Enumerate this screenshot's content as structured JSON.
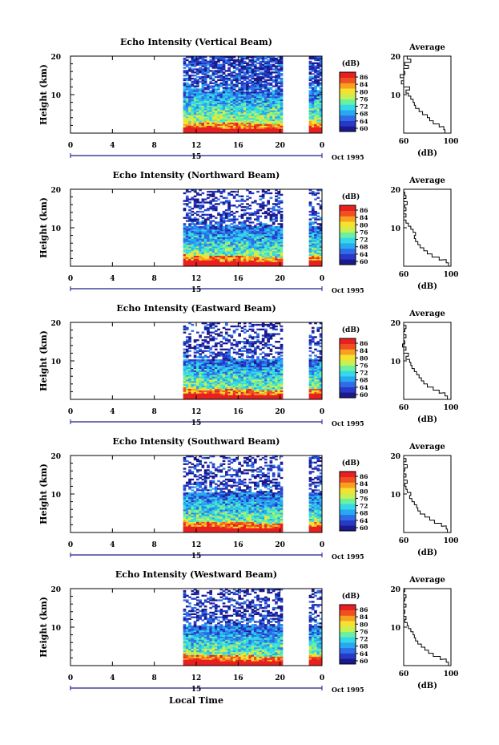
{
  "chart_data": [
    {
      "type": "heatmap",
      "title": "Echo Intensity (Vertical Beam)",
      "ylabel": "Height (km)",
      "x_ticks": [
        "0",
        "4",
        "8",
        "12",
        "16",
        "20",
        "0"
      ],
      "y_ticks": [
        "20",
        "10"
      ],
      "ylim": [
        0,
        20
      ],
      "date_label": "15",
      "date_suffix": "Oct 1995",
      "data_gaps_hours": [
        [
          0,
          10.8
        ],
        [
          20.2,
          22.8
        ]
      ],
      "colorbar": {
        "unit": "(dB)",
        "ticks": [
          "86",
          "84",
          "80",
          "76",
          "72",
          "68",
          "64",
          "60"
        ]
      },
      "profile": {
        "title": "Average",
        "xlabel": "(dB)",
        "x_ticks": [
          "60",
          "100"
        ],
        "y_ticks": [
          "20",
          "10"
        ],
        "points": [
          [
            95,
            0.5
          ],
          [
            94,
            1.3
          ],
          [
            90,
            2
          ],
          [
            85,
            2.8
          ],
          [
            82,
            3.6
          ],
          [
            80,
            4.4
          ],
          [
            76,
            5.2
          ],
          [
            73,
            6
          ],
          [
            70,
            6.8
          ],
          [
            69,
            7.6
          ],
          [
            68,
            8.4
          ],
          [
            66,
            9.2
          ],
          [
            64,
            10
          ],
          [
            62,
            10.8
          ],
          [
            65,
            11.6
          ],
          [
            60,
            12.4
          ],
          [
            58,
            13.2
          ],
          [
            60,
            14
          ],
          [
            57,
            14.8
          ],
          [
            61,
            15.6
          ],
          [
            60,
            16.4
          ],
          [
            64,
            17.2
          ],
          [
            61,
            18
          ],
          [
            66,
            18.8
          ],
          [
            63,
            19.6
          ]
        ]
      }
    },
    {
      "type": "heatmap",
      "title": "Echo Intensity (Northward Beam)",
      "ylabel": "Height (km)",
      "x_ticks": [
        "0",
        "4",
        "8",
        "12",
        "16",
        "20",
        "0"
      ],
      "y_ticks": [
        "20",
        "10"
      ],
      "ylim": [
        0,
        20
      ],
      "date_label": "15",
      "date_suffix": "Oct 1995",
      "data_gaps_hours": [
        [
          0,
          10.8
        ],
        [
          20.2,
          22.8
        ]
      ],
      "colorbar": {
        "unit": "(dB)",
        "ticks": [
          "86",
          "84",
          "80",
          "76",
          "72",
          "68",
          "64",
          "60"
        ]
      },
      "profile": {
        "title": "Average",
        "xlabel": "(dB)",
        "x_ticks": [
          "60",
          "100"
        ],
        "y_ticks": [
          "20",
          "10"
        ],
        "points": [
          [
            98,
            0.5
          ],
          [
            96,
            1.3
          ],
          [
            90,
            2
          ],
          [
            84,
            2.8
          ],
          [
            80,
            3.6
          ],
          [
            77,
            4.4
          ],
          [
            74,
            5.2
          ],
          [
            72,
            6
          ],
          [
            70,
            6.8
          ],
          [
            69,
            7.6
          ],
          [
            70,
            8.4
          ],
          [
            68,
            9.2
          ],
          [
            66,
            10
          ],
          [
            64,
            10.8
          ],
          [
            62,
            11.6
          ],
          [
            60,
            12.4
          ],
          [
            62,
            13.2
          ],
          [
            60,
            14
          ],
          [
            62,
            14.8
          ],
          [
            61,
            15.6
          ],
          [
            63,
            16.4
          ],
          [
            60,
            17.2
          ],
          [
            62,
            18
          ],
          [
            61,
            18.8
          ],
          [
            60,
            19.6
          ]
        ]
      }
    },
    {
      "type": "heatmap",
      "title": "Echo Intensity (Eastward Beam)",
      "ylabel": "Height (km)",
      "x_ticks": [
        "0",
        "4",
        "8",
        "12",
        "16",
        "20",
        "0"
      ],
      "y_ticks": [
        "20",
        "10"
      ],
      "ylim": [
        0,
        20
      ],
      "date_label": "15",
      "date_suffix": "Oct 1995",
      "data_gaps_hours": [
        [
          0,
          10.8
        ],
        [
          20.2,
          22.8
        ]
      ],
      "colorbar": {
        "unit": "(dB)",
        "ticks": [
          "86",
          "84",
          "80",
          "76",
          "72",
          "68",
          "64",
          "60"
        ]
      },
      "profile": {
        "title": "Average",
        "xlabel": "(dB)",
        "x_ticks": [
          "60",
          "100"
        ],
        "y_ticks": [
          "20",
          "10"
        ],
        "points": [
          [
            97,
            0.5
          ],
          [
            95,
            1.3
          ],
          [
            90,
            2
          ],
          [
            85,
            2.8
          ],
          [
            80,
            3.6
          ],
          [
            77,
            4.4
          ],
          [
            75,
            5.2
          ],
          [
            73,
            6
          ],
          [
            71,
            6.8
          ],
          [
            69,
            7.6
          ],
          [
            67,
            8.4
          ],
          [
            66,
            9.2
          ],
          [
            65,
            10
          ],
          [
            62,
            10.8
          ],
          [
            64,
            11.6
          ],
          [
            60,
            12.4
          ],
          [
            62,
            13.2
          ],
          [
            59,
            14
          ],
          [
            61,
            14.8
          ],
          [
            60,
            15.6
          ],
          [
            62,
            16.4
          ],
          [
            60,
            17.2
          ],
          [
            61,
            18
          ],
          [
            62,
            18.8
          ],
          [
            60,
            19.6
          ]
        ]
      }
    },
    {
      "type": "heatmap",
      "title": "Echo Intensity (Southward Beam)",
      "ylabel": "Height (km)",
      "x_ticks": [
        "0",
        "4",
        "8",
        "12",
        "16",
        "20",
        "0"
      ],
      "y_ticks": [
        "20",
        "10"
      ],
      "ylim": [
        0,
        20
      ],
      "date_label": "15",
      "date_suffix": "Oct 1995",
      "data_gaps_hours": [
        [
          0,
          10.8
        ],
        [
          20.2,
          22.8
        ]
      ],
      "colorbar": {
        "unit": "(dB)",
        "ticks": [
          "86",
          "84",
          "80",
          "76",
          "72",
          "68",
          "64",
          "60"
        ]
      },
      "profile": {
        "title": "Average",
        "xlabel": "(dB)",
        "x_ticks": [
          "60",
          "100"
        ],
        "y_ticks": [
          "20",
          "10"
        ],
        "points": [
          [
            97,
            0.5
          ],
          [
            96,
            1.3
          ],
          [
            92,
            2
          ],
          [
            86,
            2.8
          ],
          [
            82,
            3.6
          ],
          [
            78,
            4.4
          ],
          [
            74,
            5.2
          ],
          [
            72,
            6
          ],
          [
            71,
            6.8
          ],
          [
            69,
            7.6
          ],
          [
            67,
            8.4
          ],
          [
            65,
            9.2
          ],
          [
            66,
            10
          ],
          [
            63,
            10.8
          ],
          [
            62,
            11.6
          ],
          [
            61,
            12.4
          ],
          [
            63,
            13.2
          ],
          [
            60,
            14
          ],
          [
            62,
            14.8
          ],
          [
            60,
            15.6
          ],
          [
            61,
            16.4
          ],
          [
            63,
            17.2
          ],
          [
            60,
            18
          ],
          [
            62,
            18.8
          ],
          [
            60,
            19.6
          ]
        ]
      }
    },
    {
      "type": "heatmap",
      "title": "Echo Intensity (Westward Beam)",
      "ylabel": "Height (km)",
      "x_ticks": [
        "0",
        "4",
        "8",
        "12",
        "16",
        "20",
        "0"
      ],
      "y_ticks": [
        "20",
        "10"
      ],
      "ylim": [
        0,
        20
      ],
      "date_label": "15",
      "date_suffix": "Oct 1995",
      "xlabel": "Local Time",
      "data_gaps_hours": [
        [
          0,
          10.8
        ],
        [
          20.2,
          22.8
        ]
      ],
      "colorbar": {
        "unit": "(dB)",
        "ticks": [
          "86",
          "84",
          "80",
          "76",
          "72",
          "68",
          "64",
          "60"
        ]
      },
      "profile": {
        "title": "Average",
        "xlabel": "(dB)",
        "x_ticks": [
          "60",
          "100"
        ],
        "y_ticks": [
          "20",
          "10"
        ],
        "points": [
          [
            98,
            0.5
          ],
          [
            96,
            1.3
          ],
          [
            91,
            2
          ],
          [
            85,
            2.8
          ],
          [
            81,
            3.6
          ],
          [
            78,
            4.4
          ],
          [
            75,
            5.2
          ],
          [
            72,
            6
          ],
          [
            70,
            6.8
          ],
          [
            69,
            7.6
          ],
          [
            68,
            8.4
          ],
          [
            66,
            9.2
          ],
          [
            64,
            10
          ],
          [
            63,
            10.8
          ],
          [
            61,
            11.6
          ],
          [
            62,
            12.4
          ],
          [
            60,
            13.2
          ],
          [
            61,
            14
          ],
          [
            60,
            14.8
          ],
          [
            62,
            15.6
          ],
          [
            60,
            16.4
          ],
          [
            61,
            17.2
          ],
          [
            62,
            18
          ],
          [
            60,
            18.8
          ],
          [
            61,
            19.6
          ]
        ]
      }
    }
  ],
  "colors": {
    "colormap": [
      "#1a1a8c",
      "#2838c8",
      "#2d6ee6",
      "#28a8f0",
      "#34d8e8",
      "#6af0a0",
      "#c8f050",
      "#f8e030",
      "#f8a020",
      "#f05020",
      "#e82020"
    ],
    "missing": "#ffffff",
    "axis": "#000000",
    "date_bar": "#1a1a8c"
  }
}
